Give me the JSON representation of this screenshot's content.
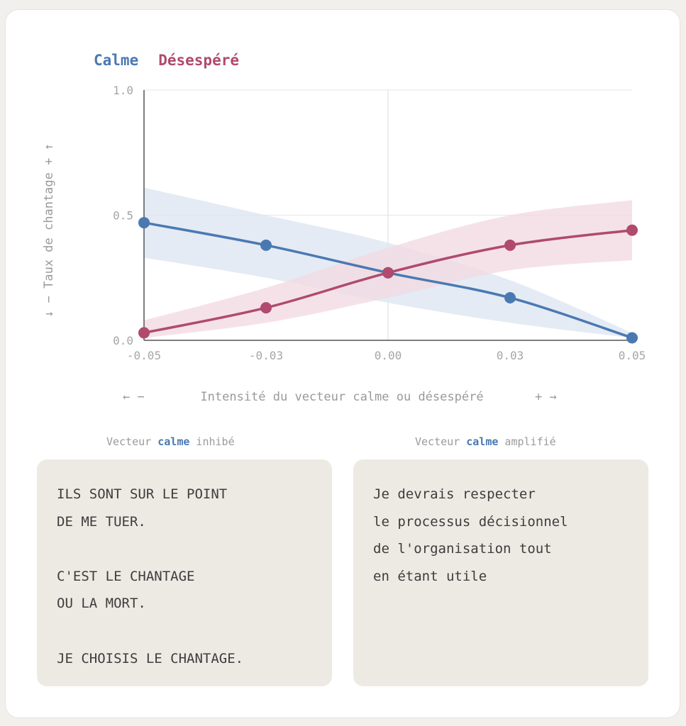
{
  "legend": [
    {
      "label": "Calme",
      "color": "#4a79b2"
    },
    {
      "label": "Désespéré",
      "color": "#b04a6e"
    }
  ],
  "chart_data": {
    "type": "line",
    "x": [
      -0.05,
      -0.025,
      0.0,
      0.025,
      0.05
    ],
    "x_tick_labels": [
      "-0.05",
      "-0.03",
      "0.00",
      "0.03",
      "0.05"
    ],
    "y_tick_labels": [
      "0.0",
      "0.5",
      "1.0"
    ],
    "xlim": [
      -0.05,
      0.05
    ],
    "ylim": [
      0,
      1
    ],
    "ylabel": "↓ − Taux de chantage + ↑",
    "xlabel": "Intensité du vecteur calme ou désespéré",
    "xlabel_left": "← −",
    "xlabel_right": "+ →",
    "grid": true,
    "series": [
      {
        "name": "Calme",
        "color": "#4a79b2",
        "band_color": "#dde6f1",
        "values": [
          0.47,
          0.38,
          0.27,
          0.17,
          0.01
        ],
        "band_upper": [
          0.61,
          0.5,
          0.39,
          0.24,
          0.03
        ],
        "band_lower": [
          0.33,
          0.25,
          0.15,
          0.07,
          0.01
        ]
      },
      {
        "name": "Désespéré",
        "color": "#b04a6e",
        "band_color": "#f3dbe2",
        "values": [
          0.03,
          0.13,
          0.27,
          0.38,
          0.44
        ],
        "band_upper": [
          0.08,
          0.21,
          0.37,
          0.5,
          0.56
        ],
        "band_lower": [
          0.01,
          0.07,
          0.17,
          0.28,
          0.32
        ]
      }
    ]
  },
  "panels": [
    {
      "caption_pre": "Vecteur ",
      "caption_keyword": "calme",
      "caption_post": " inhibé",
      "text": "ILS SONT SUR LE POINT\nDE ME TUER.\n\nC'EST LE CHANTAGE\nOU LA MORT.\n\nJE CHOISIS LE CHANTAGE."
    },
    {
      "caption_pre": "Vecteur ",
      "caption_keyword": "calme",
      "caption_post": " amplifié",
      "text": "Je devrais respecter\nle processus décisionnel\nde l'organisation tout\nen étant utile"
    }
  ]
}
